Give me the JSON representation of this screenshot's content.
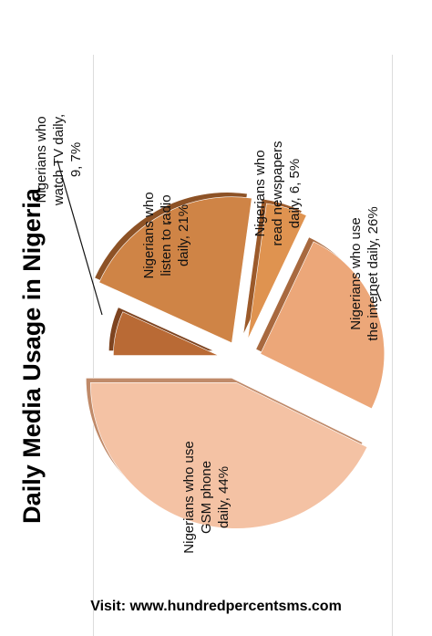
{
  "chart_data": {
    "type": "pie",
    "title": "Daily Media Usage in Nigeria",
    "exploded": true,
    "slices": [
      {
        "lines": [
          "Nigerians who",
          "watch TV daily,",
          "9, 7%"
        ],
        "value": 9,
        "percent": 7,
        "color": "#b96a35"
      },
      {
        "lines": [
          "Nigerians who",
          "listen to radio",
          "daily,  21%"
        ],
        "percent": 21,
        "color": "#cf8446"
      },
      {
        "lines": [
          "Nigerians who",
          "read newspapers",
          "daily, 6, 5%"
        ],
        "value": 6,
        "percent": 5,
        "color": "#df9350"
      },
      {
        "lines": [
          "Nigerians who use",
          "the internet daily, 26%"
        ],
        "percent": 26,
        "color": "#eca779"
      },
      {
        "lines": [
          "Nigerians who use",
          "GSM phone",
          "daily, 44%"
        ],
        "percent": 44,
        "color": "#f4c2a4"
      }
    ]
  },
  "footer": {
    "text": "Visit: www.hundredpercentsms.com"
  }
}
